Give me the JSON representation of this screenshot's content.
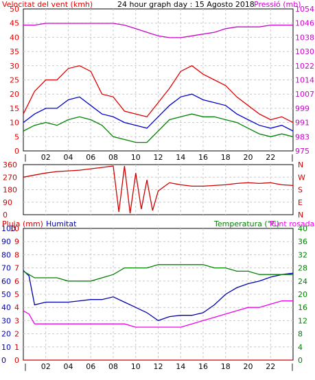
{
  "header": {
    "wind_label": "Velocitat del vent (kmh)",
    "title": "24 hour graph day : 15 Agosto 2018",
    "pressure_label": "Pressió (mb)"
  },
  "colors": {
    "wind_gust": "#e00000",
    "wind_avg": "#0000cc",
    "wind_min": "#008000",
    "pressure": "#cc00cc",
    "direction": "#cc0000",
    "humidity": "#0000aa",
    "temperature": "#008000",
    "dewpoint": "#ee00ee",
    "rain": "#cc0000",
    "grid": "#c8c8c8"
  },
  "x_ticks": [
    "02",
    "04",
    "06",
    "08",
    "10",
    "12",
    "14",
    "16",
    "18",
    "20",
    "22"
  ],
  "x_start_tick": "|",
  "x_end_tick": "|",
  "panels": {
    "wind": {
      "left_ticks": [
        "50",
        "45",
        "40",
        "35",
        "30",
        "25",
        "20",
        "15",
        "10",
        "5",
        "0"
      ],
      "right_ticks": [
        "1054",
        "1046",
        "1038",
        "1030",
        "1022",
        "1014",
        "1007",
        "999",
        "991",
        "983",
        "975"
      ]
    },
    "direction": {
      "left_ticks": [
        "360",
        "270",
        "180",
        "90",
        "0"
      ],
      "right_ticks": [
        "N",
        "W",
        "S",
        "E",
        "N"
      ]
    },
    "thp": {
      "rain_label": "Pluja (mm)",
      "humidity_label": "Humitat",
      "temp_label": "Temperatura (°C)",
      "dew_label": "Punt rosada",
      "left_ticks_rain": [
        "10",
        "9",
        "8",
        "7",
        "6",
        "5",
        "4",
        "3",
        "2",
        "1",
        "0"
      ],
      "left_ticks_hum": [
        "100",
        "90",
        "80",
        "70",
        "60",
        "50",
        "40",
        "30",
        "20",
        "10",
        "0"
      ],
      "right_ticks": [
        "40",
        "36",
        "32",
        "28",
        "24",
        "20",
        "16",
        "12",
        "8",
        "4",
        "0"
      ]
    }
  },
  "chart_data": [
    {
      "type": "line",
      "title": "24 hour graph day : 15 Agosto 2018",
      "ylabel": "Velocitat del vent (kmh)",
      "y2label": "Pressió (mb)",
      "x_unit": "hour",
      "xlim": [
        0,
        24
      ],
      "ylim": [
        0,
        50
      ],
      "y2lim": [
        975,
        1054
      ],
      "x": [
        0,
        1,
        2,
        3,
        4,
        5,
        6,
        7,
        8,
        9,
        10,
        11,
        12,
        13,
        14,
        15,
        16,
        17,
        18,
        19,
        20,
        21,
        22,
        23,
        24
      ],
      "series": [
        {
          "role": "wind_gust",
          "values": [
            13,
            21,
            25,
            25,
            29,
            30,
            28,
            20,
            19,
            14,
            13,
            12,
            17,
            22,
            28,
            30,
            27,
            25,
            23,
            19,
            16,
            13,
            11,
            12,
            10
          ]
        },
        {
          "role": "wind_avg",
          "values": [
            10,
            13,
            15,
            15,
            18,
            19,
            16,
            13,
            12,
            10,
            9,
            8,
            12,
            16,
            19,
            20,
            18,
            17,
            16,
            13,
            11,
            9,
            8,
            9,
            7
          ]
        },
        {
          "role": "wind_min",
          "values": [
            7,
            9,
            10,
            9,
            11,
            12,
            11,
            9,
            5,
            4,
            3,
            3,
            7,
            11,
            12,
            13,
            12,
            12,
            11,
            10,
            8,
            6,
            5,
            6,
            5
          ]
        },
        {
          "role": "pressure",
          "values": [
            1045,
            1045,
            1046,
            1046,
            1046,
            1046,
            1046,
            1046,
            1046,
            1045,
            1043,
            1041,
            1039,
            1038,
            1038,
            1039,
            1040,
            1041,
            1043,
            1044,
            1044,
            1044,
            1045,
            1045,
            1045
          ]
        }
      ]
    },
    {
      "type": "line",
      "ylabel": "",
      "x_unit": "hour",
      "xlim": [
        0,
        24
      ],
      "ylim": [
        0,
        360
      ],
      "x": [
        0,
        1,
        2,
        3,
        4,
        5,
        6,
        7,
        8,
        8.5,
        9,
        9.5,
        10,
        10.5,
        11,
        11.5,
        12,
        12.5,
        13,
        14,
        15,
        16,
        17,
        18,
        19,
        20,
        21,
        22,
        23,
        24
      ],
      "series": [
        {
          "role": "direction",
          "values": [
            270,
            285,
            300,
            310,
            315,
            320,
            330,
            340,
            350,
            20,
            350,
            10,
            300,
            40,
            250,
            30,
            170,
            200,
            230,
            215,
            205,
            205,
            210,
            215,
            225,
            230,
            225,
            230,
            215,
            210
          ]
        }
      ]
    },
    {
      "type": "line",
      "ylabel": "Humitat",
      "y2label": "Temperatura (°C)",
      "x_unit": "hour",
      "xlim": [
        0,
        24
      ],
      "ylim": [
        0,
        100
      ],
      "y2lim": [
        0,
        40
      ],
      "x": [
        0,
        0.5,
        1,
        2,
        3,
        4,
        5,
        6,
        7,
        8,
        9,
        10,
        11,
        12,
        13,
        14,
        15,
        16,
        17,
        18,
        19,
        20,
        21,
        22,
        23,
        24
      ],
      "series": [
        {
          "role": "humidity",
          "values": [
            68,
            64,
            42,
            44,
            44,
            44,
            45,
            46,
            46,
            48,
            44,
            40,
            36,
            30,
            33,
            34,
            34,
            36,
            42,
            50,
            55,
            58,
            60,
            63,
            65,
            66
          ]
        },
        {
          "role": "temperature",
          "values": [
            27,
            26,
            25,
            25,
            25,
            24,
            24,
            24,
            25,
            26,
            28,
            28,
            28,
            29,
            29,
            29,
            29,
            29,
            28,
            28,
            27,
            27,
            26,
            26,
            26,
            26
          ]
        },
        {
          "role": "dewpoint",
          "values": [
            15,
            14,
            11,
            11,
            11,
            11,
            11,
            11,
            11,
            11,
            11,
            10,
            10,
            10,
            10,
            10,
            11,
            12,
            13,
            14,
            15,
            16,
            16,
            17,
            18,
            18
          ]
        },
        {
          "role": "rain",
          "values": [
            0,
            0,
            0,
            0,
            0,
            0,
            0,
            0,
            0,
            0,
            0,
            0,
            0,
            0,
            0,
            0,
            0,
            0,
            0,
            0,
            0,
            0,
            0,
            0,
            0,
            0
          ]
        }
      ]
    }
  ]
}
